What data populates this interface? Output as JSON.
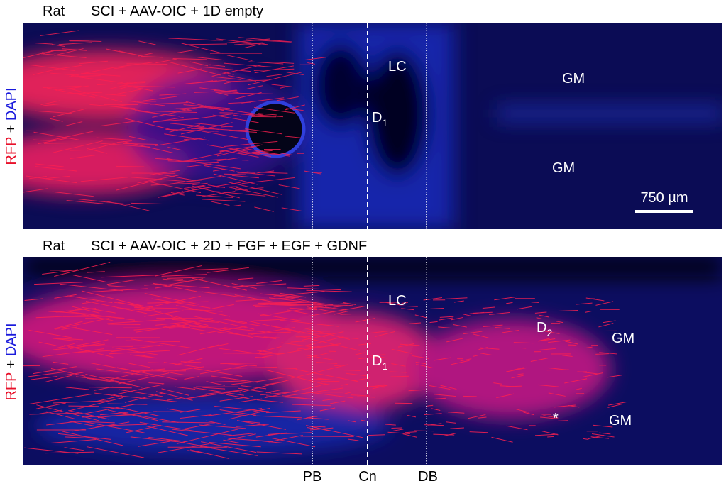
{
  "panels": [
    {
      "species": "Rat",
      "condition": "SCI + AAV-OIC + 1D empty",
      "stain": {
        "rfp": "RFP",
        "plus": "+",
        "dapi": "DAPI"
      },
      "regions": {
        "lc": "LC",
        "d1": {
          "letter": "D",
          "sub": "1"
        },
        "gm_top": "GM",
        "gm_bottom": "GM"
      },
      "scale_bar": "750 µm"
    },
    {
      "species": "Rat",
      "condition": "SCI + AAV-OIC + 2D + FGF + EGF + GDNF",
      "stain": {
        "rfp": "RFP",
        "plus": "+",
        "dapi": "DAPI"
      },
      "regions": {
        "lc": "LC",
        "d1": {
          "letter": "D",
          "sub": "1"
        },
        "d2": {
          "letter": "D",
          "sub": "2"
        },
        "gm_top": "GM",
        "gm_bottom": "GM",
        "asterisk": "*"
      }
    }
  ],
  "boundaries": [
    "PB",
    "Cn",
    "DB"
  ]
}
